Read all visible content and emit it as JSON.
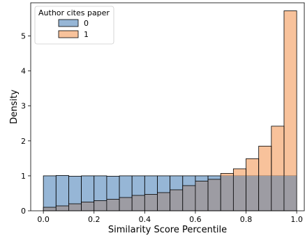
{
  "chart_data": {
    "type": "bar",
    "subtype": "overlaid-histogram",
    "xlabel": "Similarity Score Percentile",
    "ylabel": "Density",
    "xlim": [
      -0.05,
      1.03
    ],
    "ylim": [
      0,
      5.95
    ],
    "bin_width": 0.05,
    "bin_starts": [
      0.0,
      0.05,
      0.1,
      0.15,
      0.2,
      0.25,
      0.3,
      0.35,
      0.4,
      0.45,
      0.5,
      0.55,
      0.6,
      0.65,
      0.7,
      0.75,
      0.8,
      0.85,
      0.9,
      0.95
    ],
    "x_ticks": [
      "0.0",
      "0.2",
      "0.4",
      "0.6",
      "0.8",
      "1.0"
    ],
    "y_ticks": [
      "0",
      "1",
      "2",
      "3",
      "4",
      "5"
    ],
    "grid": false,
    "legend": {
      "title": "Author cites paper",
      "placement": "top-left"
    },
    "series": [
      {
        "name": "0",
        "color": "#6a97c4",
        "values": [
          1.0,
          1.01,
          0.99,
          1.0,
          1.0,
          0.99,
          1.0,
          1.0,
          1.0,
          1.0,
          1.0,
          1.0,
          1.0,
          1.0,
          1.0,
          1.0,
          1.0,
          1.0,
          1.0,
          1.0
        ]
      },
      {
        "name": "1",
        "color": "#f5a870",
        "values": [
          0.1,
          0.14,
          0.2,
          0.25,
          0.29,
          0.33,
          0.38,
          0.44,
          0.47,
          0.52,
          0.6,
          0.72,
          0.85,
          0.9,
          1.07,
          1.2,
          1.49,
          1.85,
          2.42,
          5.72
        ]
      }
    ]
  }
}
